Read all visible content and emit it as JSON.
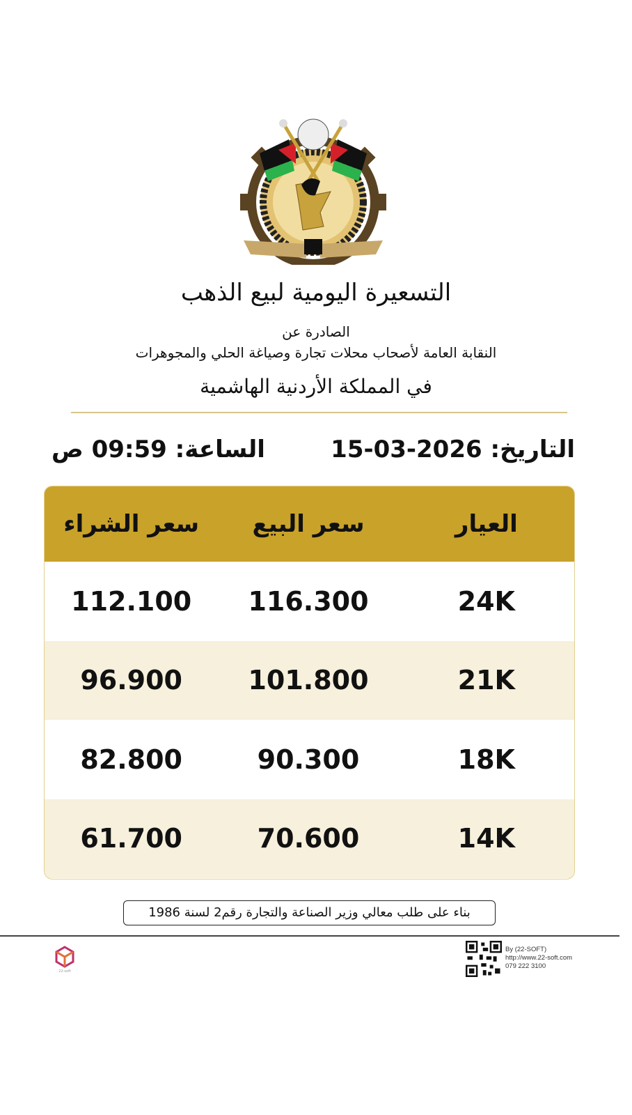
{
  "logo": {
    "text_right": "النقابة العامة لأصحاب المحلي",
    "text_left": "محلات تجارة وصياغة والمجوهرات",
    "year": "1972"
  },
  "header": {
    "title": "التسعيرة اليومية لبيع الذهب",
    "issued_by": "الصادرة عن",
    "union": "النقابة العامة لأصحاب محلات تجارة وصياغة الحلي والمجوهرات",
    "kingdom": "في المملكة الأردنية الهاشمية"
  },
  "datetime": {
    "date_label": "التاريخ:",
    "date": "15-03-2026",
    "time_label": "الساعة:",
    "time": "09:59 ص"
  },
  "table": {
    "headers": {
      "karat": "العيار",
      "sell": "سعر البيع",
      "buy": "سعر الشراء"
    },
    "rows": [
      {
        "karat": "24K",
        "sell": "116.300",
        "buy": "112.100"
      },
      {
        "karat": "21K",
        "sell": "101.800",
        "buy": "96.900"
      },
      {
        "karat": "18K",
        "sell": "90.300",
        "buy": "82.800"
      },
      {
        "karat": "14K",
        "sell": "70.600",
        "buy": "61.700"
      }
    ]
  },
  "note": "بناء على طلب معالي وزير الصناعة والتجارة رقم2 لسنة 1986",
  "footer": {
    "by": "By (22-SOFT)",
    "url": "http://www.22-soft.com",
    "phone": "079 222 3100",
    "brand_logo": "22-soft"
  },
  "colors": {
    "gold": "#c9a22a",
    "cream": "#f6f0dc",
    "rule": "#d8c58b"
  }
}
